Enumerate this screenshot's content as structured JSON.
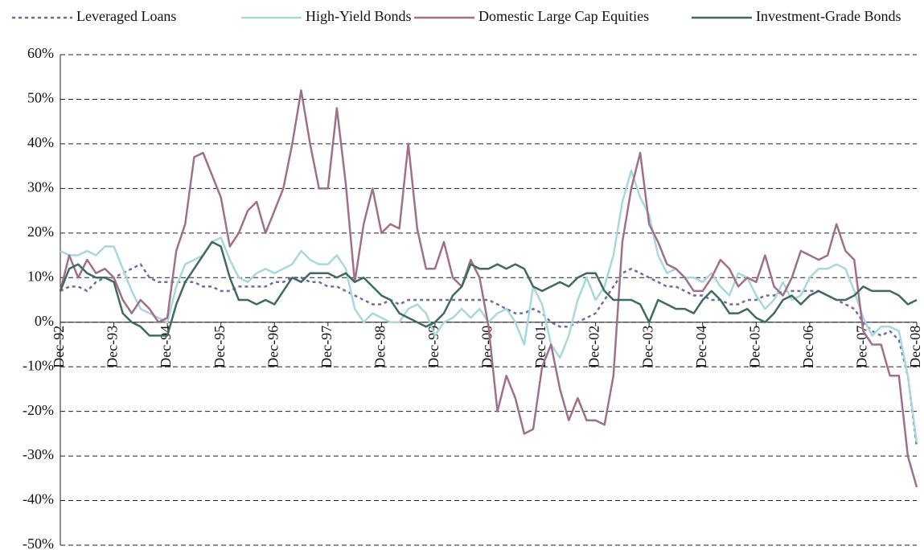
{
  "chart_data": {
    "type": "line",
    "categories": [
      "Dec-92",
      null,
      null,
      null,
      null,
      null,
      "Dec-93",
      null,
      null,
      null,
      null,
      null,
      "Dec-94",
      null,
      null,
      null,
      null,
      null,
      "Dec-95",
      null,
      null,
      null,
      null,
      null,
      "Dec-96",
      null,
      null,
      null,
      null,
      null,
      "Dec-97",
      null,
      null,
      null,
      null,
      null,
      "Dec-98",
      null,
      null,
      null,
      null,
      null,
      "Dec-99",
      null,
      null,
      null,
      null,
      null,
      "Dec-00",
      null,
      null,
      null,
      null,
      null,
      "Dec-01",
      null,
      null,
      null,
      null,
      null,
      "Dec-02",
      null,
      null,
      null,
      null,
      null,
      "Dec-03",
      null,
      null,
      null,
      null,
      null,
      "Dec-04",
      null,
      null,
      null,
      null,
      null,
      "Dec-05",
      null,
      null,
      null,
      null,
      null,
      "Dec-06",
      null,
      null,
      null,
      null,
      null,
      "Dec-07",
      null,
      null,
      null,
      null,
      null,
      "Dec-08"
    ],
    "series": [
      {
        "name": "Leveraged Loans",
        "color": "#6b6bb0",
        "dash": true,
        "values": [
          7,
          8,
          8,
          7,
          9,
          10,
          10,
          11,
          12,
          13,
          10,
          9,
          9,
          9,
          9,
          9,
          8,
          8,
          7,
          7,
          8,
          8,
          8,
          8,
          9,
          9,
          10,
          10,
          9,
          9,
          8,
          8,
          7,
          6,
          5,
          4,
          4,
          5,
          4,
          5,
          5,
          5,
          5,
          5,
          5,
          5,
          5,
          5,
          5,
          4,
          3,
          2,
          2,
          3,
          2,
          0,
          -1,
          -1,
          0,
          1,
          2,
          5,
          8,
          11,
          12,
          11,
          10,
          9,
          8,
          8,
          7,
          6,
          6,
          5,
          5,
          4,
          4,
          5,
          5,
          6,
          6,
          7,
          7,
          7,
          7,
          7,
          6,
          5,
          4,
          3,
          0,
          -2,
          -3,
          -2,
          -4,
          -12,
          -28
        ]
      },
      {
        "name": "High-Yield Bonds",
        "color": "#a8d8dc",
        "dash": false,
        "values": [
          16,
          15,
          15,
          16,
          15,
          17,
          17,
          12,
          7,
          3,
          2,
          1,
          0,
          8,
          13,
          14,
          15,
          18,
          19,
          14,
          10,
          9,
          11,
          12,
          11,
          12,
          13,
          16,
          14,
          13,
          13,
          15,
          12,
          3,
          0,
          2,
          1,
          0,
          0,
          3,
          4,
          2,
          -3,
          0,
          1,
          3,
          1,
          3,
          0,
          2,
          3,
          0,
          -5,
          8,
          4,
          -5,
          -8,
          -3,
          5,
          10,
          5,
          8,
          15,
          27,
          34,
          28,
          24,
          15,
          11,
          12,
          10,
          10,
          9,
          11,
          8,
          6,
          11,
          10,
          6,
          3,
          5,
          9,
          5,
          6,
          10,
          12,
          12,
          13,
          12,
          7,
          1,
          -3,
          -1,
          -1,
          -2,
          -12,
          -27
        ]
      },
      {
        "name": "Domestic Large Cap Equities",
        "color": "#a0708a",
        "dash": false,
        "values": [
          7,
          15,
          10,
          14,
          11,
          12,
          10,
          5,
          2,
          5,
          3,
          0,
          1,
          16,
          22,
          37,
          38,
          33,
          28,
          17,
          20,
          25,
          27,
          20,
          25,
          30,
          40,
          52,
          40,
          30,
          30,
          48,
          31,
          9,
          22,
          30,
          20,
          22,
          21,
          40,
          21,
          12,
          12,
          18,
          10,
          8,
          14,
          10,
          -1,
          -20,
          -12,
          -17,
          -25,
          -24,
          -10,
          -5,
          -15,
          -22,
          -17,
          -22,
          -22,
          -23,
          -12,
          18,
          30,
          38,
          22,
          18,
          13,
          12,
          10,
          7,
          7,
          10,
          14,
          12,
          8,
          10,
          9,
          15,
          8,
          6,
          10,
          16,
          15,
          14,
          15,
          22,
          16,
          14,
          -2,
          -5,
          -5,
          -12,
          -12,
          -30,
          -37
        ]
      },
      {
        "name": "Investment-Grade Bonds",
        "color": "#3e6b5c",
        "dash": false,
        "values": [
          7,
          12,
          13,
          11,
          10,
          10,
          9,
          2,
          0,
          -1,
          -3,
          -3,
          -3,
          4,
          9,
          12,
          15,
          18,
          17,
          10,
          5,
          5,
          4,
          5,
          4,
          7,
          10,
          9,
          11,
          11,
          11,
          10,
          11,
          9,
          10,
          8,
          6,
          5,
          2,
          1,
          0,
          -1,
          0,
          2,
          6,
          8,
          13,
          12,
          12,
          13,
          12,
          13,
          12,
          8,
          7,
          8,
          9,
          8,
          10,
          11,
          11,
          7,
          5,
          5,
          5,
          4,
          0,
          5,
          4,
          3,
          3,
          2,
          5,
          7,
          5,
          2,
          2,
          3,
          1,
          0,
          2,
          5,
          6,
          4,
          6,
          7,
          6,
          5,
          5,
          6,
          8,
          7,
          7,
          7,
          6,
          4,
          5
        ]
      }
    ],
    "ylim": [
      -50,
      60
    ],
    "yticks": [
      {
        "value": -50,
        "label": "-50%"
      },
      {
        "value": -40,
        "label": "-40%"
      },
      {
        "value": -30,
        "label": "-30%"
      },
      {
        "value": -20,
        "label": "-20%"
      },
      {
        "value": -10,
        "label": "-10%"
      },
      {
        "value": 0,
        "label": "0%"
      },
      {
        "value": 10,
        "label": "10%"
      },
      {
        "value": 20,
        "label": "20%"
      },
      {
        "value": 30,
        "label": "30%"
      },
      {
        "value": 40,
        "label": "40%"
      },
      {
        "value": 50,
        "label": "50%"
      },
      {
        "value": 60,
        "label": "60%"
      }
    ],
    "grid": true
  }
}
